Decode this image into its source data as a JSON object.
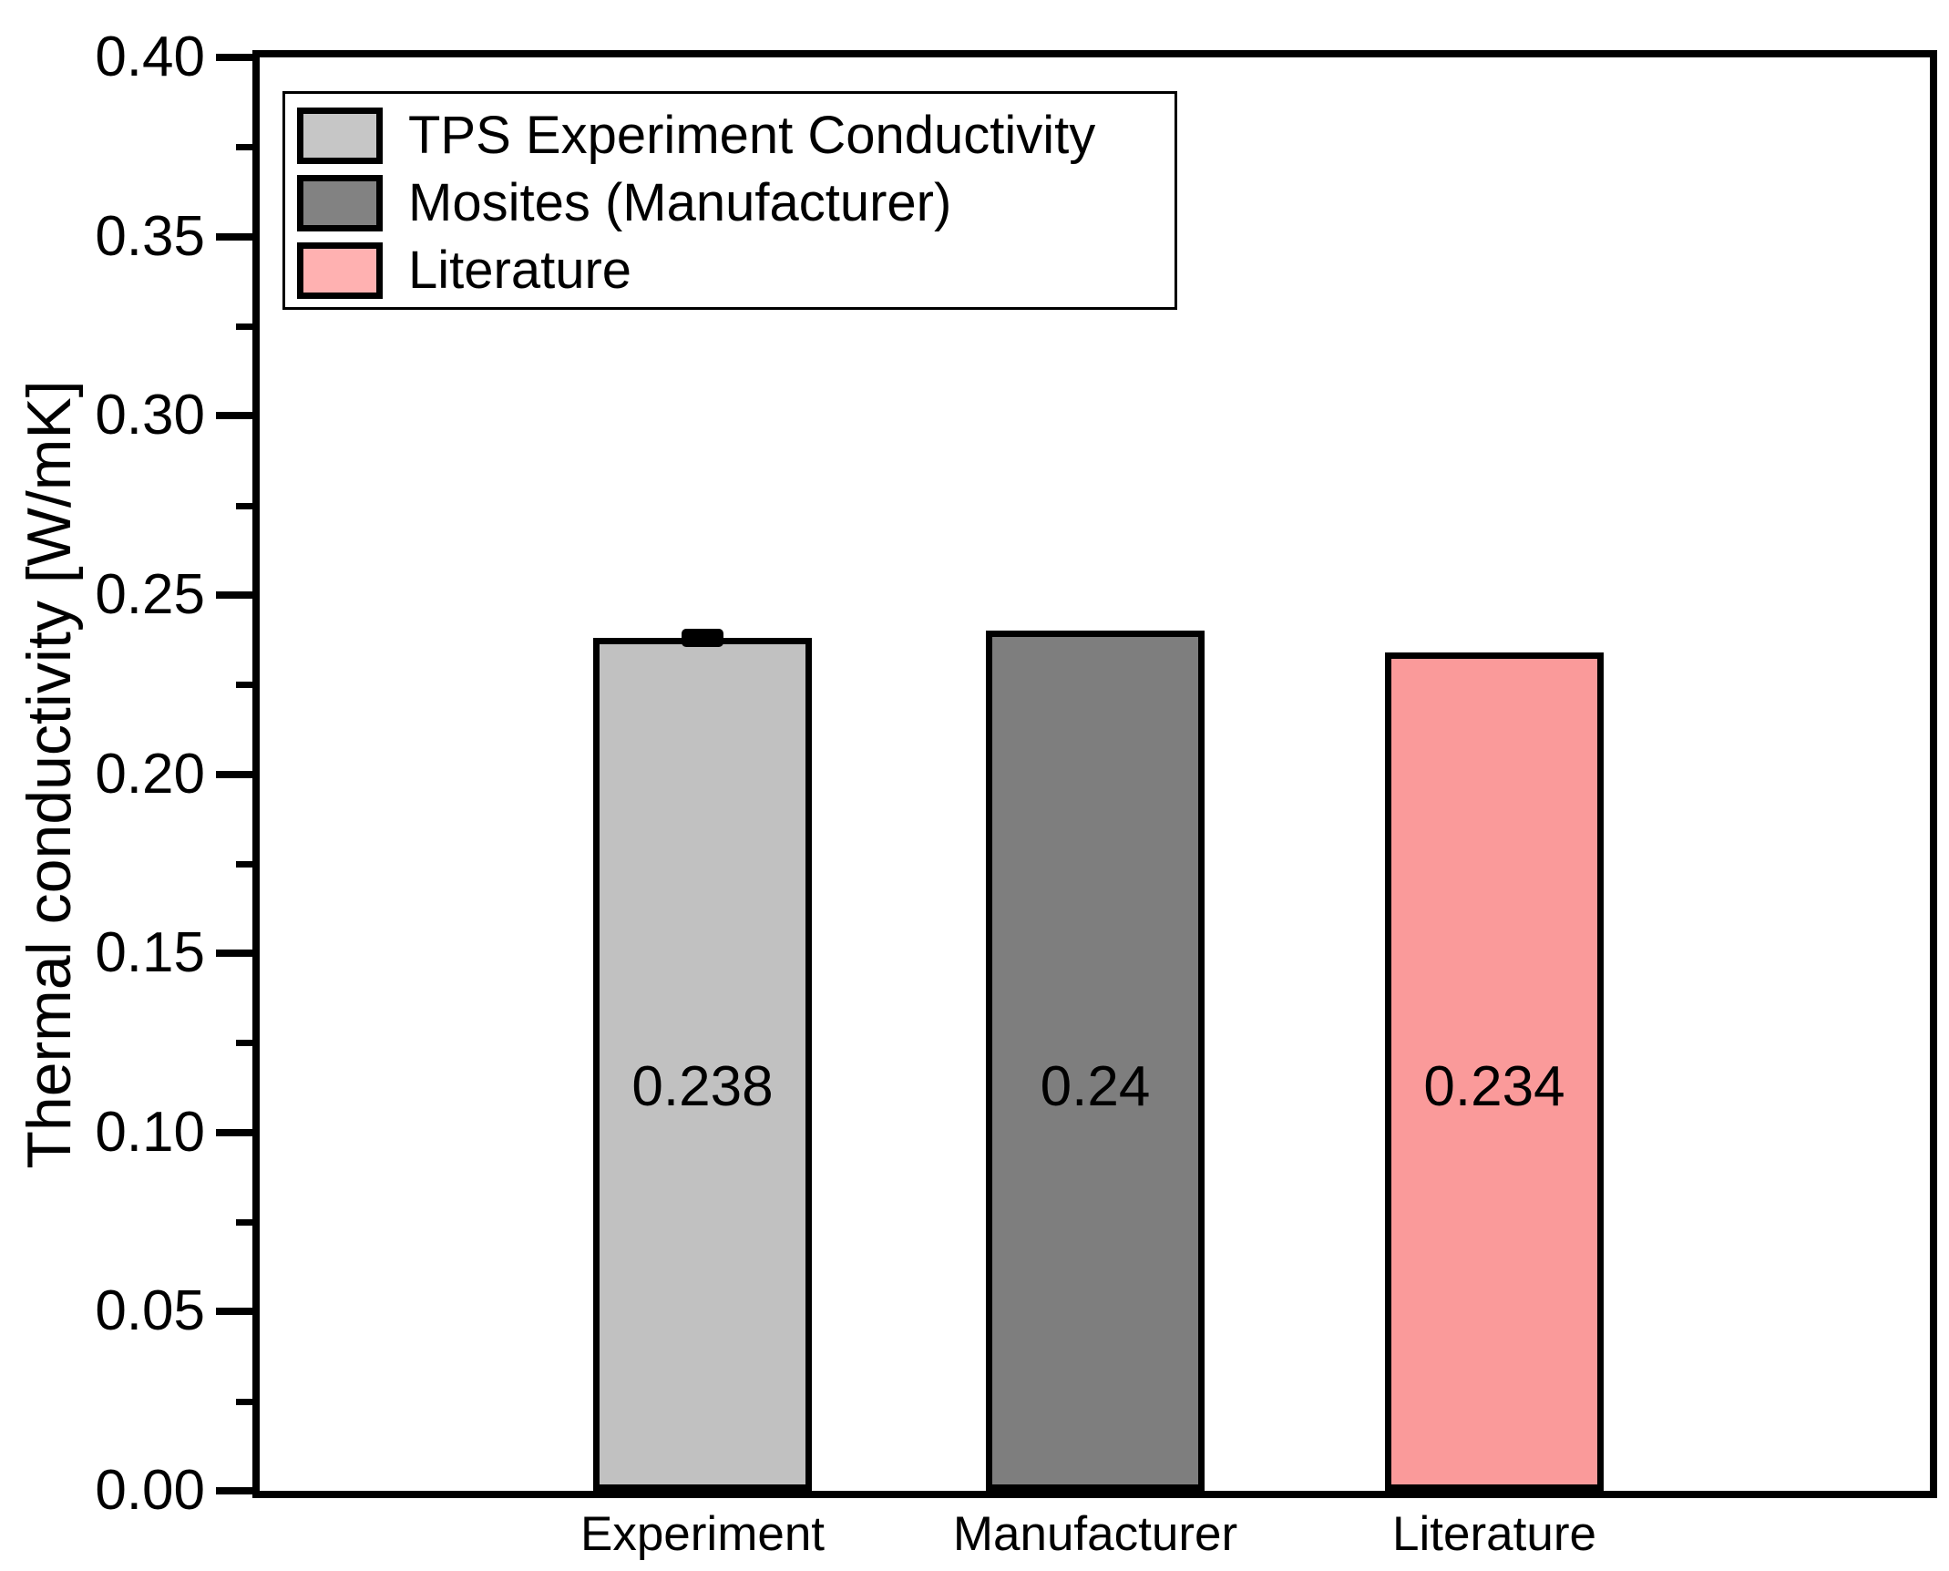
{
  "chart_data": {
    "type": "bar",
    "title": "",
    "xlabel": "",
    "ylabel": "Thermal conductivity [W/mK]",
    "ylim": [
      0.0,
      0.4
    ],
    "y_major_ticks": [
      0.0,
      0.05,
      0.1,
      0.15,
      0.2,
      0.25,
      0.3,
      0.35,
      0.4
    ],
    "y_major_tick_labels": [
      "0.00",
      "0.05",
      "0.10",
      "0.15",
      "0.20",
      "0.25",
      "0.30",
      "0.35",
      "0.40"
    ],
    "y_minor_tick_step": 0.025,
    "grid": false,
    "categories": [
      "Experiment",
      "Manufacturer",
      "Literature"
    ],
    "values": [
      0.238,
      0.24,
      0.234
    ],
    "value_labels": [
      "0.238",
      "0.24",
      "0.234"
    ],
    "errors": [
      0.0025,
      0,
      0
    ],
    "bar_colors": [
      "#c1c1c1",
      "#7e7e7e",
      "#fa9a9a"
    ],
    "axis_color": "#000000",
    "background_color": "#ffffff",
    "legend": {
      "position": "top-left",
      "entries": [
        {
          "label": "TPS Experiment Conductivity",
          "color": "#c6c6c6"
        },
        {
          "label": "Mosites (Manufacturer)",
          "color": "#828282"
        },
        {
          "label": "Literature",
          "color": "#ffb1b1"
        }
      ]
    }
  }
}
